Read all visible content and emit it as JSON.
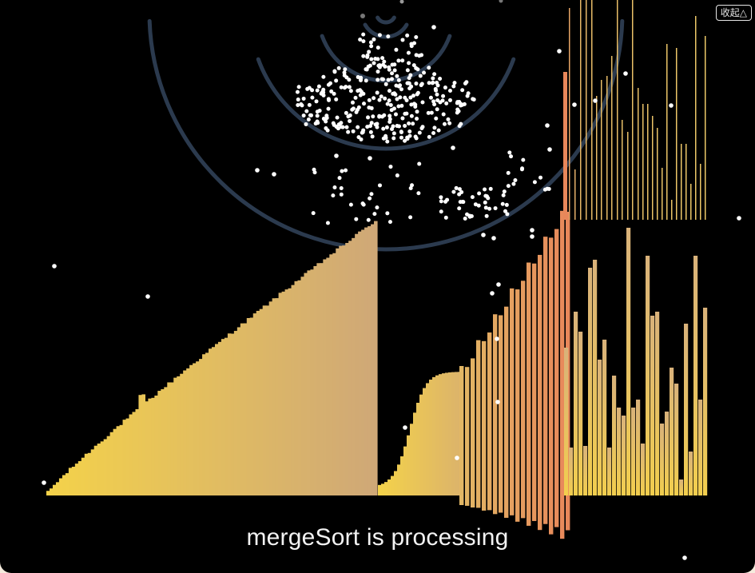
{
  "header": {
    "collapse_label": "收起△"
  },
  "status": {
    "text": "mergeSort is processing"
  },
  "colors": {
    "background": "#000000",
    "bar_low": "#f4d24a",
    "bar_high": "#e8875a",
    "bar_mid": "#dcae6e",
    "ring": "#2b3a4e",
    "particle": "#ffffff"
  },
  "icons": {
    "collapse": "triangle-up-icon"
  }
}
